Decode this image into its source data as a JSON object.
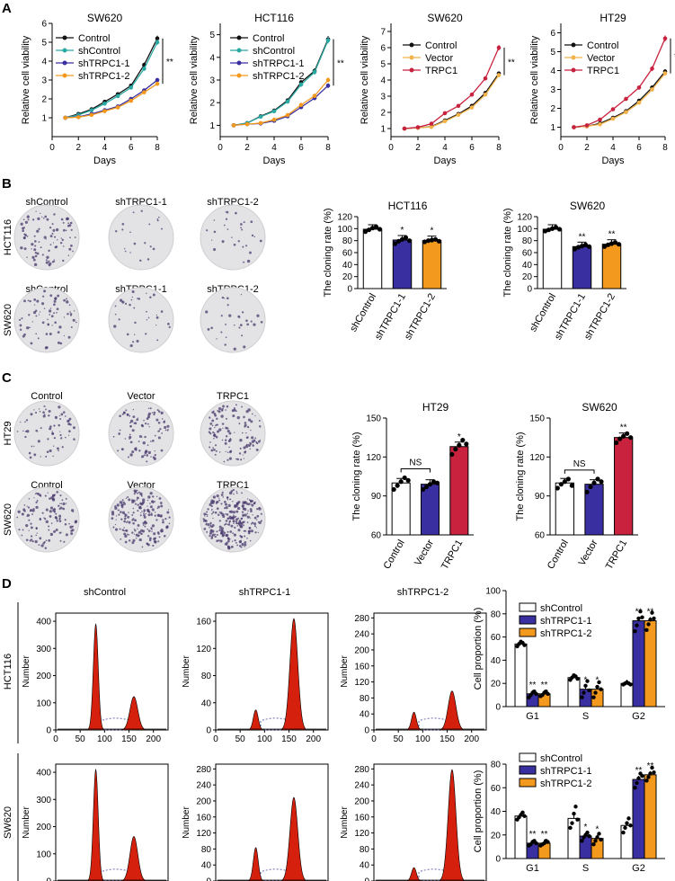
{
  "colors": {
    "black": "#111111",
    "teal": "#2aa9a3",
    "navy": "#3a2fa0",
    "orange": "#f39a1e",
    "gold": "#f3b34b",
    "crimson": "#c9223e",
    "red_fill": "#d6200e",
    "dish": "#e3e2e4",
    "purple_dot": "#4a3a6e"
  },
  "panels": {
    "A": "A",
    "B": "B",
    "C": "C",
    "D": "D"
  },
  "chart_data": [
    {
      "id": "A1",
      "type": "line",
      "title": "SW620",
      "xlabel": "Days",
      "ylabel": "Relative cell viability",
      "x": [
        1,
        2,
        3,
        4,
        5,
        6,
        7,
        8
      ],
      "xlim": [
        0,
        8
      ],
      "ylim": [
        0,
        6
      ],
      "xticks": [
        "0",
        "2",
        "4",
        "6",
        "8"
      ],
      "yticks": [
        "1",
        "2",
        "3",
        "4",
        "5",
        "6"
      ],
      "sig": "**",
      "series": [
        {
          "name": "Control",
          "color": "#111111",
          "values": [
            1.0,
            1.2,
            1.45,
            1.85,
            2.25,
            2.7,
            3.8,
            5.2
          ]
        },
        {
          "name": "shControl",
          "color": "#2aa9a3",
          "values": [
            1.0,
            1.15,
            1.4,
            1.75,
            2.15,
            2.6,
            3.6,
            5.0
          ]
        },
        {
          "name": "shTRPC1-1",
          "color": "#3a2fa0",
          "values": [
            1.0,
            1.05,
            1.2,
            1.4,
            1.6,
            2.0,
            2.45,
            3.0
          ]
        },
        {
          "name": "shTRPC1-2",
          "color": "#f39a1e",
          "values": [
            1.0,
            1.03,
            1.15,
            1.35,
            1.55,
            1.9,
            2.35,
            2.8
          ]
        }
      ]
    },
    {
      "id": "A2",
      "type": "line",
      "title": "HCT116",
      "xlabel": "Days",
      "ylabel": "Relative cell viability",
      "x": [
        1,
        2,
        3,
        4,
        5,
        6,
        7,
        8
      ],
      "xlim": [
        0,
        8
      ],
      "ylim": [
        0.5,
        5.5
      ],
      "xticks": [
        "0",
        "2",
        "4",
        "6",
        "8"
      ],
      "yticks": [
        "1",
        "2",
        "3",
        "4",
        "5"
      ],
      "sig": "**",
      "series": [
        {
          "name": "Control",
          "color": "#111111",
          "values": [
            1.0,
            1.1,
            1.4,
            1.65,
            2.1,
            2.9,
            3.4,
            4.8
          ]
        },
        {
          "name": "shControl",
          "color": "#2aa9a3",
          "values": [
            1.0,
            1.1,
            1.38,
            1.62,
            2.05,
            2.8,
            3.35,
            4.75
          ]
        },
        {
          "name": "shTRPC1-1",
          "color": "#3a2fa0",
          "values": [
            1.0,
            1.05,
            1.08,
            1.2,
            1.4,
            1.8,
            2.2,
            2.75
          ]
        },
        {
          "name": "shTRPC1-2",
          "color": "#f39a1e",
          "values": [
            1.0,
            1.05,
            1.1,
            1.25,
            1.45,
            1.9,
            2.3,
            3.0
          ]
        }
      ]
    },
    {
      "id": "A3",
      "type": "line",
      "title": "SW620",
      "xlabel": "Days",
      "ylabel": "Relative cell viability",
      "x": [
        1,
        2,
        3,
        4,
        5,
        6,
        7,
        8
      ],
      "xlim": [
        0,
        8
      ],
      "ylim": [
        0.5,
        7.5
      ],
      "xticks": [
        "0",
        "2",
        "4",
        "6",
        "8"
      ],
      "yticks": [
        "1",
        "2",
        "3",
        "4",
        "5",
        "6",
        "7"
      ],
      "sig": "**",
      "series": [
        {
          "name": "Control",
          "color": "#111111",
          "values": [
            1.0,
            1.05,
            1.12,
            1.5,
            1.9,
            2.4,
            3.2,
            4.4
          ]
        },
        {
          "name": "Vector",
          "color": "#f3b34b",
          "values": [
            1.0,
            1.05,
            1.1,
            1.45,
            1.85,
            2.3,
            3.1,
            4.3
          ]
        },
        {
          "name": "TRPC1",
          "color": "#c9223e",
          "values": [
            1.0,
            1.08,
            1.3,
            1.95,
            2.4,
            3.1,
            4.1,
            6.0
          ]
        }
      ]
    },
    {
      "id": "A4",
      "type": "line",
      "title": "HT29",
      "xlabel": "Days",
      "ylabel": "Relative cell viability",
      "x": [
        1,
        2,
        3,
        4,
        5,
        6,
        7,
        8
      ],
      "xlim": [
        0,
        8
      ],
      "ylim": [
        0.5,
        6.5
      ],
      "xticks": [
        "0",
        "2",
        "4",
        "6",
        "8"
      ],
      "yticks": [
        "1",
        "2",
        "3",
        "4",
        "5",
        "6"
      ],
      "sig": "**",
      "series": [
        {
          "name": "Control",
          "color": "#111111",
          "values": [
            1.0,
            1.05,
            1.2,
            1.5,
            1.85,
            2.4,
            3.1,
            3.95
          ]
        },
        {
          "name": "Vector",
          "color": "#f3b34b",
          "values": [
            1.0,
            1.05,
            1.15,
            1.45,
            1.8,
            2.3,
            3.0,
            3.85
          ]
        },
        {
          "name": "TRPC1",
          "color": "#c9223e",
          "values": [
            1.0,
            1.1,
            1.4,
            1.95,
            2.5,
            3.1,
            4.1,
            5.7
          ]
        }
      ]
    },
    {
      "id": "B1",
      "type": "bar",
      "title": "HCT116",
      "ylabel": "The cloning rate (%)",
      "categories": [
        "shControl",
        "shTRPC1-1",
        "shTRPC1-2"
      ],
      "values": [
        99,
        81,
        80
      ],
      "colors": [
        "#ffffff",
        "#3a2fa0",
        "#f39a1e"
      ],
      "sig": [
        "",
        "*",
        "*"
      ],
      "points": [
        [
          95,
          98,
          101,
          103,
          99
        ],
        [
          75,
          79,
          82,
          85,
          80
        ],
        [
          78,
          80,
          81,
          82,
          79
        ]
      ],
      "ylim": [
        0,
        120
      ],
      "yticks": [
        "0",
        "20",
        "40",
        "60",
        "80",
        "100",
        "120"
      ]
    },
    {
      "id": "B2",
      "type": "bar",
      "title": "SW620",
      "ylabel": "The cloning rate (%)",
      "categories": [
        "shControl",
        "shTRPC1-1",
        "shTRPC1-2"
      ],
      "values": [
        99,
        70,
        74
      ],
      "colors": [
        "#ffffff",
        "#3a2fa0",
        "#f39a1e"
      ],
      "sig": [
        "",
        "**",
        "**"
      ],
      "points": [
        [
          96,
          98,
          100,
          102,
          99
        ],
        [
          66,
          69,
          71,
          73,
          70
        ],
        [
          70,
          73,
          75,
          77,
          74
        ]
      ],
      "ylim": [
        0,
        120
      ],
      "yticks": [
        "0",
        "20",
        "40",
        "60",
        "80",
        "100",
        "120"
      ]
    },
    {
      "id": "C1",
      "type": "bar",
      "title": "HT29",
      "ylabel": "The cloning rate (%)",
      "categories": [
        "Control",
        "Vector",
        "TRPC1"
      ],
      "values": [
        100,
        99,
        128
      ],
      "colors": [
        "#ffffff",
        "#3a2fa0",
        "#c9223e"
      ],
      "sig": [
        "",
        "",
        "*"
      ],
      "bracket": "NS",
      "points": [
        [
          95,
          98,
          101,
          104,
          102
        ],
        [
          95,
          97,
          99,
          101,
          100
        ],
        [
          122,
          126,
          129,
          133,
          130
        ]
      ],
      "ylim": [
        60,
        150
      ],
      "yticks": [
        "60",
        "90",
        "120",
        "150"
      ]
    },
    {
      "id": "C2",
      "type": "bar",
      "title": "SW620",
      "ylabel": "The cloning rate (%)",
      "categories": [
        "Control",
        "Vector",
        "TRPC1"
      ],
      "values": [
        100,
        99,
        135
      ],
      "colors": [
        "#ffffff",
        "#3a2fa0",
        "#c9223e"
      ],
      "sig": [
        "",
        "",
        "**"
      ],
      "bracket": "NS",
      "points": [
        [
          96,
          99,
          101,
          103,
          98
        ],
        [
          93,
          97,
          100,
          103,
          101
        ],
        [
          131,
          134,
          136,
          138,
          135
        ]
      ],
      "ylim": [
        60,
        150
      ],
      "yticks": [
        "60",
        "90",
        "120",
        "150"
      ]
    },
    {
      "id": "D1",
      "type": "bar",
      "ylabel": "Cell proportion (%)",
      "categories": [
        "G1",
        "S",
        "G2"
      ],
      "series": [
        {
          "name": "shControl",
          "color": "#ffffff",
          "values": [
            54,
            25,
            20
          ],
          "points": [
            [
              52,
              54,
              56,
              55,
              53
            ],
            [
              23,
              25,
              27,
              26,
              24
            ],
            [
              19,
              20,
              21,
              20,
              19
            ]
          ]
        },
        {
          "name": "shTRPC1-1",
          "color": "#3a2fa0",
          "values": [
            11,
            15,
            74
          ],
          "points": [
            [
              8,
              10,
              12,
              13,
              11
            ],
            [
              8,
              12,
              18,
              22,
              14
            ],
            [
              65,
              70,
              76,
              82,
              77
            ]
          ]
        },
        {
          "name": "shTRPC1-2",
          "color": "#f39a1e",
          "values": [
            11,
            15,
            74
          ],
          "points": [
            [
              9,
              10,
              12,
              13,
              11
            ],
            [
              8,
              12,
              17,
              21,
              15
            ],
            [
              66,
              71,
              75,
              81,
              76
            ]
          ]
        }
      ],
      "sig": [
        [
          "",
          "**",
          "**"
        ],
        [
          "",
          "*",
          "*"
        ],
        [
          "",
          "**",
          "**"
        ]
      ],
      "ylim": [
        0,
        100
      ],
      "yticks": [
        "0",
        "20",
        "40",
        "60",
        "80",
        "100"
      ]
    },
    {
      "id": "D2",
      "type": "bar",
      "ylabel": "Cell proportion (%)",
      "categories": [
        "G1",
        "S",
        "G2"
      ],
      "series": [
        {
          "name": "shControl",
          "color": "#ffffff",
          "values": [
            36,
            34,
            28
          ],
          "points": [
            [
              33,
              35,
              37,
              39,
              36
            ],
            [
              26,
              30,
              38,
              44,
              33
            ],
            [
              22,
              26,
              30,
              34,
              28
            ]
          ]
        },
        {
          "name": "shTRPC1-1",
          "color": "#3a2fa0",
          "values": [
            13,
            19,
            67
          ],
          "points": [
            [
              11,
              12,
              14,
              15,
              13
            ],
            [
              15,
              18,
              20,
              22,
              19
            ],
            [
              60,
              64,
              68,
              72,
              70
            ]
          ]
        },
        {
          "name": "shTRPC1-2",
          "color": "#f39a1e",
          "values": [
            13,
            17,
            71
          ],
          "points": [
            [
              11,
              12,
              13,
              15,
              14
            ],
            [
              12,
              15,
              18,
              21,
              16
            ],
            [
              66,
              69,
              72,
              77,
              73
            ]
          ]
        }
      ],
      "sig": [
        [
          "",
          "**",
          "**"
        ],
        [
          "",
          "*",
          "*"
        ],
        [
          "",
          "**",
          "**"
        ]
      ],
      "ylim": [
        0,
        80
      ],
      "yticks": [
        "0",
        "20",
        "40",
        "60",
        "80"
      ]
    }
  ],
  "dishes": {
    "B": {
      "col_labels": [
        "shControl",
        "shTRPC1-1",
        "shTRPC1-2"
      ],
      "col_labels_row2": [
        "shControl",
        "shTRPC1-1",
        "shTRPC1-2"
      ],
      "row_labels": [
        "HCT116",
        "SW620"
      ],
      "density": [
        [
          90,
          20,
          28
        ],
        [
          70,
          35,
          30
        ]
      ]
    },
    "C": {
      "col_labels": [
        "Control",
        "Vector",
        "TRPC1"
      ],
      "col_labels_row2": [
        "Control",
        "Vector",
        "TRPC1"
      ],
      "row_labels": [
        "HT29",
        "SW620"
      ],
      "density": [
        [
          70,
          95,
          120
        ],
        [
          120,
          190,
          260
        ]
      ]
    }
  },
  "flow": {
    "col_labels": [
      "shControl",
      "shTRPC1-1",
      "shTRPC1-2"
    ],
    "row_labels": [
      "HCT116",
      "SW620"
    ],
    "ylabel": "Number",
    "xticks": [
      "0",
      "50",
      "100",
      "150",
      "200"
    ],
    "yticks": [
      [
        [
          "0",
          "100",
          "200",
          "300",
          "400"
        ],
        [
          "0",
          "40",
          "80",
          "120",
          "160"
        ],
        [
          "0",
          "40",
          "80",
          "120",
          "160",
          "200",
          "240",
          "280"
        ]
      ],
      [
        [
          "0",
          "100",
          "200",
          "300",
          "400"
        ],
        [
          "0",
          "40",
          "80",
          "120",
          "160",
          "200",
          "240",
          "280"
        ],
        [
          "0",
          "40",
          "80",
          "120",
          "160",
          "200",
          "240",
          "280"
        ]
      ]
    ],
    "peaks": [
      [
        [
          0.95,
          0.3
        ],
        [
          0.18,
          1.0
        ],
        [
          0.16,
          0.35
        ]
      ],
      [
        [
          1.0,
          0.4
        ],
        [
          0.3,
          0.75
        ],
        [
          0.12,
          1.0
        ]
      ]
    ]
  }
}
